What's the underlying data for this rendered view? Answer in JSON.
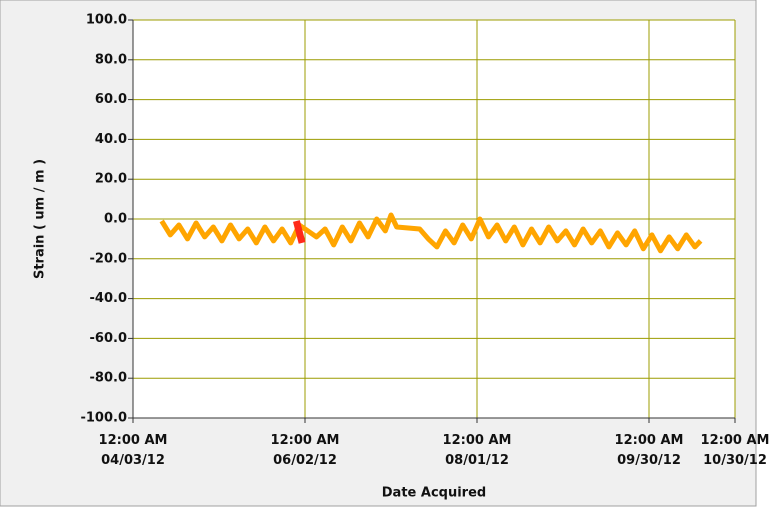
{
  "chart_data": {
    "type": "line",
    "ylabel": "Strain ( um / m )",
    "xlabel": "Date Acquired",
    "ylim": [
      -100,
      100
    ],
    "yticks": [
      {
        "value": -100,
        "label": "-100.0"
      },
      {
        "value": -80,
        "label": "-80.0"
      },
      {
        "value": -60,
        "label": "-60.0"
      },
      {
        "value": -40,
        "label": "-40.0"
      },
      {
        "value": -20,
        "label": "-20.0"
      },
      {
        "value": 0,
        "label": "0.0"
      },
      {
        "value": 20,
        "label": "20.0"
      },
      {
        "value": 40,
        "label": "40.0"
      },
      {
        "value": 60,
        "label": "60.0"
      },
      {
        "value": 80,
        "label": "80.0"
      },
      {
        "value": 100,
        "label": "100.0"
      }
    ],
    "xlim": [
      "2012-04-03T00:00",
      "2012-10-30T00:00"
    ],
    "xticks": [
      {
        "value": "2012-04-03T00:00",
        "label": [
          "12:00 AM",
          "04/03/12"
        ]
      },
      {
        "value": "2012-06-02T00:00",
        "label": [
          "12:00 AM",
          "06/02/12"
        ]
      },
      {
        "value": "2012-08-01T00:00",
        "label": [
          "12:00 AM",
          "08/01/12"
        ]
      },
      {
        "value": "2012-09-30T00:00",
        "label": [
          "12:00 AM",
          "09/30/12"
        ]
      },
      {
        "value": "2012-10-30T00:00",
        "label": [
          "12:00 AM",
          "10/30/12"
        ]
      }
    ],
    "grid": true,
    "grid_color": "#9c9c00",
    "series": [
      {
        "color": "#ffa500",
        "x": [
          "2012-04-13",
          "2012-04-16",
          "2012-04-19",
          "2012-04-22",
          "2012-04-25",
          "2012-04-28",
          "2012-05-01",
          "2012-05-04",
          "2012-05-07",
          "2012-05-10",
          "2012-05-13",
          "2012-05-16",
          "2012-05-19",
          "2012-05-22",
          "2012-05-25",
          "2012-05-28",
          "2012-05-31",
          "2012-06-03",
          "2012-06-06",
          "2012-06-09",
          "2012-06-12",
          "2012-06-15",
          "2012-06-18",
          "2012-06-21",
          "2012-06-24",
          "2012-06-27",
          "2012-06-30",
          "2012-07-02",
          "2012-07-04",
          "2012-07-12",
          "2012-07-15",
          "2012-07-18",
          "2012-07-21",
          "2012-07-24",
          "2012-07-27",
          "2012-07-30",
          "2012-08-02",
          "2012-08-05",
          "2012-08-08",
          "2012-08-11",
          "2012-08-14",
          "2012-08-17",
          "2012-08-20",
          "2012-08-23",
          "2012-08-26",
          "2012-08-29",
          "2012-09-01",
          "2012-09-04",
          "2012-09-07",
          "2012-09-10",
          "2012-09-13",
          "2012-09-16",
          "2012-09-19",
          "2012-09-22",
          "2012-09-25",
          "2012-09-28",
          "2012-10-01",
          "2012-10-04",
          "2012-10-07",
          "2012-10-10",
          "2012-10-13",
          "2012-10-16",
          "2012-10-18"
        ],
        "values": [
          -1,
          -8,
          -3,
          -10,
          -2,
          -9,
          -4,
          -11,
          -3,
          -10,
          -5,
          -12,
          -4,
          -11,
          -5,
          -12,
          -3,
          -6,
          -9,
          -5,
          -13,
          -4,
          -11,
          -2,
          -9,
          0,
          -6,
          2,
          -4,
          -5,
          -10,
          -14,
          -6,
          -12,
          -3,
          -10,
          0,
          -9,
          -3,
          -11,
          -4,
          -13,
          -5,
          -12,
          -4,
          -11,
          -6,
          -13,
          -5,
          -12,
          -6,
          -14,
          -7,
          -13,
          -6,
          -15,
          -8,
          -16,
          -9,
          -15,
          -8,
          -14,
          -11
        ]
      },
      {
        "color": "#ff2a1a",
        "x": [
          "2012-05-30",
          "2012-06-01"
        ],
        "values": [
          -1,
          -12
        ]
      }
    ]
  }
}
